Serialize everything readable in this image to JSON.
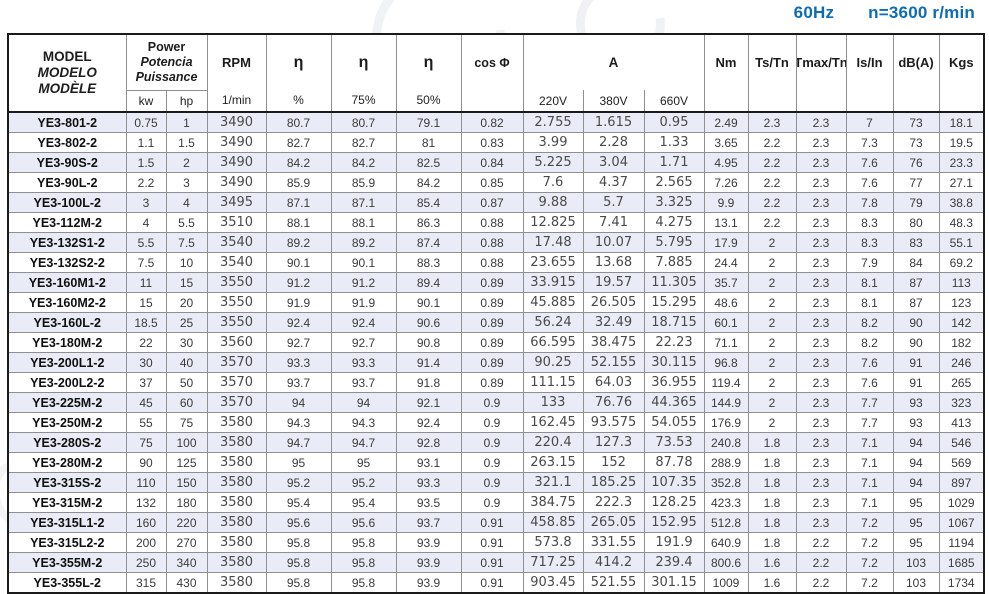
{
  "titlebar": {
    "frequency": "60Hz",
    "speed": "n=3600 r/min"
  },
  "colors": {
    "accent": "#0e6cb5",
    "row_alt": "#e9ecf6",
    "border_dark": "#1a1a1a",
    "border_light": "#8f8f8f"
  },
  "table": {
    "header": {
      "model_lines": [
        "MODEL",
        "MODELO",
        "MODÈLE"
      ],
      "power_lines": [
        "Power",
        "Potencia",
        "Puissance"
      ],
      "power_units": [
        "kw",
        "hp"
      ],
      "rpm_label": "RPM",
      "rpm_unit": "1/min",
      "eta_symbol": "η",
      "eta_units": [
        "%",
        "75%",
        "50%"
      ],
      "cos_phi_label": "cos Φ",
      "current_label": "A",
      "current_units": [
        "220V",
        "380V",
        "660V"
      ],
      "torque_label": "Nm",
      "ts_tn_label": "Ts/Tn",
      "tmax_tn_label": "Tmax/Tn",
      "is_in_label": "Is/In",
      "noise_label": "dB(A)",
      "weight_label": "Kgs"
    },
    "rows": [
      [
        "YE3-801-2",
        "0.75",
        "1",
        "3490",
        "80.7",
        "80.7",
        "79.1",
        "0.82",
        "2.755",
        "1.615",
        "0.95",
        "2.49",
        "2.3",
        "2.3",
        "7",
        "73",
        "18.1"
      ],
      [
        "YE3-802-2",
        "1.1",
        "1.5",
        "3490",
        "82.7",
        "82.7",
        "81",
        "0.83",
        "3.99",
        "2.28",
        "1.33",
        "3.65",
        "2.2",
        "2.3",
        "7.3",
        "73",
        "19.5"
      ],
      [
        "YE3-90S-2",
        "1.5",
        "2",
        "3490",
        "84.2",
        "84.2",
        "82.5",
        "0.84",
        "5.225",
        "3.04",
        "1.71",
        "4.95",
        "2.2",
        "2.3",
        "7.6",
        "76",
        "23.3"
      ],
      [
        "YE3-90L-2",
        "2.2",
        "3",
        "3490",
        "85.9",
        "85.9",
        "84.2",
        "0.85",
        "7.6",
        "4.37",
        "2.565",
        "7.26",
        "2.2",
        "2.3",
        "7.6",
        "77",
        "27.1"
      ],
      [
        "YE3-100L-2",
        "3",
        "4",
        "3495",
        "87.1",
        "87.1",
        "85.4",
        "0.87",
        "9.88",
        "5.7",
        "3.325",
        "9.9",
        "2.2",
        "2.3",
        "7.8",
        "79",
        "38.8"
      ],
      [
        "YE3-112M-2",
        "4",
        "5.5",
        "3510",
        "88.1",
        "88.1",
        "86.3",
        "0.88",
        "12.825",
        "7.41",
        "4.275",
        "13.1",
        "2.2",
        "2.3",
        "8.3",
        "80",
        "48.3"
      ],
      [
        "YE3-132S1-2",
        "5.5",
        "7.5",
        "3540",
        "89.2",
        "89.2",
        "87.4",
        "0.88",
        "17.48",
        "10.07",
        "5.795",
        "17.9",
        "2",
        "2.3",
        "8.3",
        "83",
        "55.1"
      ],
      [
        "YE3-132S2-2",
        "7.5",
        "10",
        "3540",
        "90.1",
        "90.1",
        "88.3",
        "0.88",
        "23.655",
        "13.68",
        "7.885",
        "24.4",
        "2",
        "2.3",
        "7.9",
        "84",
        "69.2"
      ],
      [
        "YE3-160M1-2",
        "11",
        "15",
        "3550",
        "91.2",
        "91.2",
        "89.4",
        "0.89",
        "33.915",
        "19.57",
        "11.305",
        "35.7",
        "2",
        "2.3",
        "8.1",
        "87",
        "113"
      ],
      [
        "YE3-160M2-2",
        "15",
        "20",
        "3550",
        "91.9",
        "91.9",
        "90.1",
        "0.89",
        "45.885",
        "26.505",
        "15.295",
        "48.6",
        "2",
        "2.3",
        "8.1",
        "87",
        "123"
      ],
      [
        "YE3-160L-2",
        "18.5",
        "25",
        "3550",
        "92.4",
        "92.4",
        "90.6",
        "0.89",
        "56.24",
        "32.49",
        "18.715",
        "60.1",
        "2",
        "2.3",
        "8.2",
        "90",
        "142"
      ],
      [
        "YE3-180M-2",
        "22",
        "30",
        "3560",
        "92.7",
        "92.7",
        "90.8",
        "0.89",
        "66.595",
        "38.475",
        "22.23",
        "71.1",
        "2",
        "2.3",
        "8.2",
        "90",
        "182"
      ],
      [
        "YE3-200L1-2",
        "30",
        "40",
        "3570",
        "93.3",
        "93.3",
        "91.4",
        "0.89",
        "90.25",
        "52.155",
        "30.115",
        "96.8",
        "2",
        "2.3",
        "7.6",
        "91",
        "246"
      ],
      [
        "YE3-200L2-2",
        "37",
        "50",
        "3570",
        "93.7",
        "93.7",
        "91.8",
        "0.89",
        "111.15",
        "64.03",
        "36.955",
        "119.4",
        "2",
        "2.3",
        "7.6",
        "91",
        "265"
      ],
      [
        "YE3-225M-2",
        "45",
        "60",
        "3570",
        "94",
        "94",
        "92.1",
        "0.9",
        "133",
        "76.76",
        "44.365",
        "144.9",
        "2",
        "2.3",
        "7.7",
        "93",
        "323"
      ],
      [
        "YE3-250M-2",
        "55",
        "75",
        "3580",
        "94.3",
        "94.3",
        "92.4",
        "0.9",
        "162.45",
        "93.575",
        "54.055",
        "176.9",
        "2",
        "2.3",
        "7.7",
        "93",
        "413"
      ],
      [
        "YE3-280S-2",
        "75",
        "100",
        "3580",
        "94.7",
        "94.7",
        "92.8",
        "0.9",
        "220.4",
        "127.3",
        "73.53",
        "240.8",
        "1.8",
        "2.3",
        "7.1",
        "94",
        "546"
      ],
      [
        "YE3-280M-2",
        "90",
        "125",
        "3580",
        "95",
        "95",
        "93.1",
        "0.9",
        "263.15",
        "152",
        "87.78",
        "288.9",
        "1.8",
        "2.3",
        "7.1",
        "94",
        "569"
      ],
      [
        "YE3-315S-2",
        "110",
        "150",
        "3580",
        "95.2",
        "95.2",
        "93.3",
        "0.9",
        "321.1",
        "185.25",
        "107.35",
        "352.8",
        "1.8",
        "2.3",
        "7.1",
        "94",
        "897"
      ],
      [
        "YE3-315M-2",
        "132",
        "180",
        "3580",
        "95.4",
        "95.4",
        "93.5",
        "0.9",
        "384.75",
        "222.3",
        "128.25",
        "423.3",
        "1.8",
        "2.3",
        "7.1",
        "95",
        "1029"
      ],
      [
        "YE3-315L1-2",
        "160",
        "220",
        "3580",
        "95.6",
        "95.6",
        "93.7",
        "0.91",
        "458.85",
        "265.05",
        "152.95",
        "512.8",
        "1.8",
        "2.3",
        "7.2",
        "95",
        "1067"
      ],
      [
        "YE3-315L2-2",
        "200",
        "270",
        "3580",
        "95.8",
        "95.8",
        "93.9",
        "0.91",
        "573.8",
        "331.55",
        "191.9",
        "640.9",
        "1.8",
        "2.2",
        "7.2",
        "95",
        "1194"
      ],
      [
        "YE3-355M-2",
        "250",
        "340",
        "3580",
        "95.8",
        "95.8",
        "93.9",
        "0.91",
        "717.25",
        "414.2",
        "239.4",
        "800.6",
        "1.6",
        "2.2",
        "7.2",
        "103",
        "1685"
      ],
      [
        "YE3-355L-2",
        "315",
        "430",
        "3580",
        "95.8",
        "95.8",
        "93.9",
        "0.91",
        "903.45",
        "521.55",
        "301.15",
        "1009",
        "1.6",
        "2.2",
        "7.2",
        "103",
        "1734"
      ]
    ]
  }
}
